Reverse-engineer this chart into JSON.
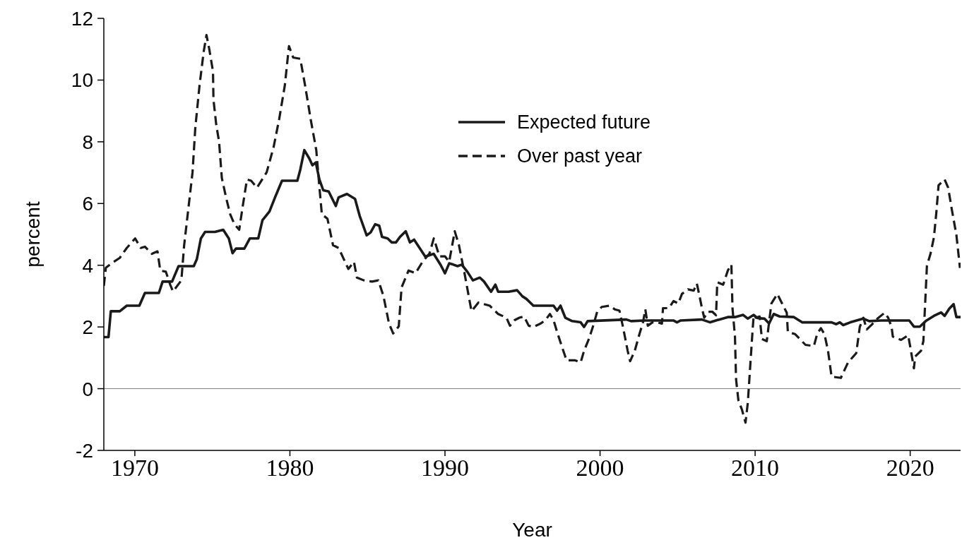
{
  "chart_data": {
    "type": "line",
    "xlabel": "Year",
    "ylabel": "percent",
    "xlim": [
      1968,
      2023.25
    ],
    "xticks": [
      1970,
      1980,
      1990,
      2000,
      2010,
      2020
    ],
    "ylim": [
      -2,
      12
    ],
    "yticks": [
      -2,
      0,
      2,
      4,
      6,
      8,
      10,
      12
    ],
    "legend": "top",
    "ref_lines": [
      {
        "axis": "y",
        "value": 0,
        "color": "#808080"
      }
    ],
    "series": [
      {
        "name": "Expected future",
        "color": "#1a1a1a",
        "line_style": "solid",
        "x": [
          1968.0,
          1968.3,
          1968.45,
          1969.03,
          1969.48,
          1970.29,
          1970.65,
          1971.55,
          1971.79,
          1972.4,
          1972.82,
          1973.8,
          1974.0,
          1974.26,
          1974.53,
          1975.16,
          1975.7,
          1976.06,
          1976.3,
          1976.52,
          1977.06,
          1977.42,
          1977.96,
          1978.23,
          1978.68,
          1979.04,
          1979.49,
          1980.48,
          1980.67,
          1980.93,
          1981.25,
          1981.45,
          1981.67,
          1981.9,
          1982.15,
          1982.5,
          1982.96,
          1983.14,
          1983.68,
          1984.2,
          1984.5,
          1984.95,
          1985.2,
          1985.5,
          1985.76,
          1985.94,
          1986.3,
          1986.57,
          1986.84,
          1987.1,
          1987.47,
          1987.74,
          1988.01,
          1988.73,
          1989.27,
          1989.72,
          1990.0,
          1990.27,
          1990.54,
          1990.81,
          1991.08,
          1991.44,
          1991.8,
          1992.25,
          1992.52,
          1992.97,
          1993.25,
          1993.43,
          1994.1,
          1994.65,
          1995.0,
          1995.25,
          1995.7,
          1997.0,
          1997.23,
          1997.45,
          1997.76,
          1998.2,
          1998.75,
          1998.97,
          1999.2,
          2001.7,
          2002.0,
          2002.85,
          2004.73,
          2004.96,
          2005.2,
          2006.56,
          2007.1,
          2007.47,
          2008.24,
          2008.7,
          2009.23,
          2009.53,
          2009.91,
          2010.14,
          2010.6,
          2010.9,
          2011.2,
          2011.58,
          2012.5,
          2013.03,
          2014.93,
          2015.23,
          2015.46,
          2015.68,
          2016.14,
          2016.98,
          2017.36,
          2018.12,
          2019.94,
          2020.24,
          2020.62,
          2021.0,
          2021.53,
          2021.99,
          2022.22,
          2022.52,
          2022.8,
          2022.98,
          2023.25
        ],
        "values": [
          1.67,
          1.67,
          2.51,
          2.51,
          2.69,
          2.69,
          3.1,
          3.1,
          3.47,
          3.47,
          3.97,
          3.97,
          4.2,
          4.87,
          5.08,
          5.08,
          5.15,
          4.87,
          4.39,
          4.54,
          4.54,
          4.87,
          4.87,
          5.46,
          5.74,
          6.2,
          6.74,
          6.74,
          7.1,
          7.73,
          7.46,
          7.24,
          7.33,
          6.78,
          6.43,
          6.39,
          5.92,
          6.2,
          6.31,
          6.15,
          5.6,
          4.97,
          5.06,
          5.33,
          5.28,
          4.92,
          4.87,
          4.74,
          4.74,
          4.92,
          5.1,
          4.74,
          4.83,
          4.28,
          4.37,
          4.01,
          3.74,
          4.06,
          4.02,
          3.97,
          4.02,
          3.79,
          3.51,
          3.6,
          3.47,
          3.14,
          3.37,
          3.14,
          3.14,
          3.19,
          2.99,
          2.91,
          2.69,
          2.69,
          2.53,
          2.69,
          2.3,
          2.19,
          2.15,
          2.0,
          2.19,
          2.24,
          2.19,
          2.21,
          2.21,
          2.15,
          2.21,
          2.24,
          2.15,
          2.21,
          2.32,
          2.32,
          2.39,
          2.27,
          2.39,
          2.29,
          2.27,
          2.11,
          2.42,
          2.34,
          2.32,
          2.15,
          2.15,
          2.09,
          2.15,
          2.06,
          2.15,
          2.27,
          2.19,
          2.21,
          2.21,
          2.01,
          2.01,
          2.19,
          2.36,
          2.47,
          2.36,
          2.59,
          2.74,
          2.32,
          2.32
        ]
      },
      {
        "name": "Over past year",
        "color": "#1a1a1a",
        "line_style": "dashed",
        "x": [
          1968.0,
          1968.13,
          1968.49,
          1969.03,
          1969.48,
          1970.02,
          1970.38,
          1970.65,
          1971.1,
          1971.46,
          1971.64,
          1972.0,
          1972.28,
          1972.46,
          1973.0,
          1973.18,
          1973.45,
          1973.72,
          1973.9,
          1974.17,
          1974.44,
          1974.62,
          1974.8,
          1975.04,
          1975.07,
          1975.25,
          1975.43,
          1975.61,
          1975.88,
          1976.15,
          1976.42,
          1976.73,
          1976.96,
          1977.23,
          1977.5,
          1977.87,
          1978.5,
          1978.95,
          1979.31,
          1979.67,
          1979.94,
          1980.21,
          1980.67,
          1980.98,
          1981.35,
          1981.7,
          1981.88,
          1982.06,
          1982.42,
          1982.78,
          1983.14,
          1983.77,
          1984.13,
          1984.32,
          1984.77,
          1985.3,
          1985.7,
          1986.03,
          1986.39,
          1986.66,
          1987.02,
          1987.2,
          1987.65,
          1988.1,
          1988.55,
          1989.0,
          1989.28,
          1989.64,
          1990.0,
          1990.27,
          1990.63,
          1990.9,
          1991.26,
          1991.71,
          1992.16,
          1992.88,
          1993.43,
          1993.96,
          1994.19,
          1994.49,
          1994.8,
          1995.1,
          1995.4,
          1995.7,
          1996.16,
          1996.47,
          1996.77,
          1997.0,
          1997.23,
          1997.53,
          1997.84,
          1998.37,
          1998.75,
          1998.97,
          1999.28,
          1999.58,
          1999.81,
          2000.11,
          2000.64,
          2000.95,
          2001.25,
          2001.48,
          2001.78,
          2001.94,
          2002.24,
          2002.54,
          2002.77,
          2002.92,
          2003.08,
          2003.38,
          2003.68,
          2003.99,
          2004.06,
          2004.44,
          2004.74,
          2005.05,
          2005.28,
          2005.66,
          2006.04,
          2006.24,
          2006.42,
          2006.57,
          2006.72,
          2006.95,
          2007.25,
          2007.48,
          2007.56,
          2007.94,
          2008.24,
          2008.47,
          2008.54,
          2008.7,
          2008.77,
          2008.92,
          2009.15,
          2009.38,
          2009.53,
          2009.68,
          2009.84,
          2009.91,
          2010.06,
          2010.29,
          2010.44,
          2010.75,
          2010.9,
          2011.05,
          2011.43,
          2011.74,
          2012.04,
          2012.11,
          2012.57,
          2013.25,
          2013.79,
          2014.0,
          2014.24,
          2014.47,
          2014.7,
          2014.93,
          2015.53,
          2015.99,
          2016.52,
          2016.75,
          2016.98,
          2017.2,
          2017.51,
          2017.89,
          2018.35,
          2018.58,
          2018.8,
          2018.88,
          2019.41,
          2019.87,
          2020.02,
          2020.24,
          2020.32,
          2020.7,
          2020.85,
          2021.08,
          2021.31,
          2021.53,
          2021.68,
          2021.83,
          2022.22,
          2022.45,
          2022.68,
          2022.98,
          2023.21
        ],
        "values": [
          3.33,
          3.92,
          4.06,
          4.24,
          4.56,
          4.87,
          4.56,
          4.6,
          4.37,
          4.45,
          3.83,
          3.79,
          3.37,
          3.15,
          3.51,
          4.65,
          5.83,
          7.01,
          8.46,
          9.82,
          10.92,
          11.46,
          11.0,
          10.28,
          9.37,
          8.55,
          8.01,
          6.83,
          6.2,
          5.65,
          5.33,
          5.15,
          5.92,
          6.78,
          6.74,
          6.51,
          7.01,
          7.83,
          8.74,
          9.82,
          11.1,
          10.73,
          10.69,
          9.82,
          8.7,
          7.73,
          6.66,
          5.65,
          5.51,
          4.65,
          4.56,
          3.88,
          4.11,
          3.6,
          3.51,
          3.47,
          3.51,
          3.01,
          2.11,
          1.79,
          2.02,
          3.28,
          3.83,
          3.74,
          4.11,
          4.38,
          4.87,
          4.29,
          4.29,
          4.11,
          5.1,
          4.65,
          3.74,
          2.51,
          2.79,
          2.69,
          2.42,
          2.3,
          2.04,
          2.22,
          2.3,
          2.34,
          2.04,
          2.0,
          2.11,
          2.22,
          2.42,
          2.22,
          1.84,
          1.38,
          0.92,
          0.92,
          0.85,
          1.23,
          1.61,
          2.07,
          2.49,
          2.65,
          2.69,
          2.57,
          2.53,
          2.0,
          1.23,
          0.89,
          1.23,
          1.77,
          2.15,
          2.57,
          2.04,
          2.15,
          2.15,
          2.11,
          2.61,
          2.61,
          2.84,
          2.76,
          3.07,
          3.22,
          3.18,
          3.41,
          2.99,
          2.61,
          2.3,
          2.49,
          2.49,
          2.38,
          3.45,
          3.37,
          3.83,
          4.02,
          2.61,
          1.69,
          0.31,
          -0.37,
          -0.68,
          -1.1,
          -0.45,
          0.7,
          1.92,
          2.38,
          2.3,
          2.34,
          1.61,
          1.54,
          2.15,
          2.76,
          3.07,
          2.76,
          2.46,
          1.84,
          1.77,
          1.42,
          1.38,
          1.77,
          1.96,
          1.77,
          1.23,
          0.39,
          0.35,
          0.85,
          1.15,
          2.0,
          2.3,
          1.92,
          2.07,
          2.27,
          2.46,
          2.3,
          2.0,
          1.69,
          1.58,
          1.73,
          1.31,
          0.66,
          1.04,
          1.23,
          1.54,
          3.99,
          4.37,
          4.9,
          5.67,
          6.59,
          6.78,
          6.51,
          5.82,
          4.98,
          3.91
        ]
      }
    ]
  }
}
